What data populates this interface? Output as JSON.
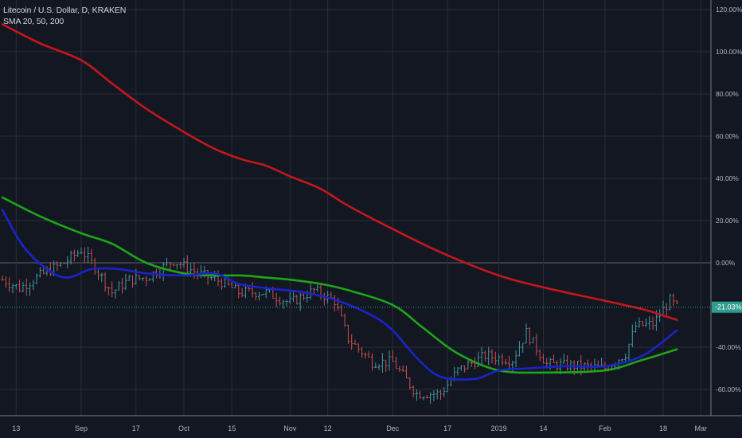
{
  "header": {
    "symbol_line": "Litecoin / U.S. Dollar, D, KRAKEN",
    "indicator_line": "SMA 20, 50, 200"
  },
  "colors": {
    "background": "#131722",
    "grid": "#2a2e39",
    "sma20": "#1b23c9",
    "sma50": "#1ea518",
    "sma200": "#c3171b",
    "candle_up": "#3f9aa4",
    "candle_down": "#c9504f",
    "current_price_tag": "#2e9d8f",
    "axis_text": "#b2b5be"
  },
  "chart_data": {
    "type": "line",
    "y_unit": "percent",
    "ylim": [
      -72,
      126
    ],
    "y_ticks": [
      {
        "value": 120,
        "label": "120.00%"
      },
      {
        "value": 100,
        "label": "100.00%"
      },
      {
        "value": 80,
        "label": "80.00%"
      },
      {
        "value": 60,
        "label": "60.00%"
      },
      {
        "value": 40,
        "label": "40.00%"
      },
      {
        "value": 20,
        "label": "20.00%"
      },
      {
        "value": 0,
        "label": "0.00%"
      },
      {
        "value": -40,
        "label": "-40.00%"
      },
      {
        "value": -60,
        "label": "-60.00%"
      }
    ],
    "x_ticks": [
      {
        "date": "2018-08-13",
        "label": "13"
      },
      {
        "date": "2018-09-01",
        "label": "Sep"
      },
      {
        "date": "2018-09-17",
        "label": "17"
      },
      {
        "date": "2018-10-01",
        "label": "Oct"
      },
      {
        "date": "2018-10-15",
        "label": "15"
      },
      {
        "date": "2018-11-01",
        "label": "Nov"
      },
      {
        "date": "2018-11-12",
        "label": "12"
      },
      {
        "date": "2018-12-01",
        "label": "Dec"
      },
      {
        "date": "2018-12-17",
        "label": "17"
      },
      {
        "date": "2019-01-01",
        "label": "2019"
      },
      {
        "date": "2019-01-14",
        "label": "14"
      },
      {
        "date": "2019-02-01",
        "label": "Feb"
      },
      {
        "date": "2019-02-18",
        "label": "18"
      },
      {
        "date": "2019-03-01",
        "label": "Mar"
      }
    ],
    "current_price": {
      "value": -21.03,
      "label": "-21.03%"
    },
    "series": [
      {
        "name": "SMA 200",
        "color_key": "sma200",
        "points": [
          [
            "2018-08-09",
            113
          ],
          [
            "2018-08-20",
            104
          ],
          [
            "2018-09-01",
            96
          ],
          [
            "2018-09-10",
            85
          ],
          [
            "2018-09-20",
            73
          ],
          [
            "2018-10-01",
            62
          ],
          [
            "2018-10-10",
            54
          ],
          [
            "2018-10-18",
            49
          ],
          [
            "2018-10-25",
            46
          ],
          [
            "2018-11-01",
            41
          ],
          [
            "2018-11-10",
            35
          ],
          [
            "2018-11-18",
            27
          ],
          [
            "2018-12-01",
            16
          ],
          [
            "2018-12-15",
            5
          ],
          [
            "2019-01-01",
            -6
          ],
          [
            "2019-01-15",
            -12
          ],
          [
            "2019-02-01",
            -18
          ],
          [
            "2019-02-12",
            -22
          ],
          [
            "2019-02-18",
            -25
          ],
          [
            "2019-02-22",
            -27
          ]
        ]
      },
      {
        "name": "SMA 50",
        "color_key": "sma50",
        "points": [
          [
            "2018-08-09",
            31
          ],
          [
            "2018-08-20",
            22
          ],
          [
            "2018-09-01",
            14
          ],
          [
            "2018-09-10",
            9
          ],
          [
            "2018-09-20",
            0
          ],
          [
            "2018-10-01",
            -5
          ],
          [
            "2018-10-10",
            -6
          ],
          [
            "2018-10-18",
            -6
          ],
          [
            "2018-10-25",
            -7
          ],
          [
            "2018-11-01",
            -8
          ],
          [
            "2018-11-10",
            -10
          ],
          [
            "2018-11-18",
            -13
          ],
          [
            "2018-12-01",
            -20
          ],
          [
            "2018-12-10",
            -31
          ],
          [
            "2018-12-20",
            -43
          ],
          [
            "2019-01-01",
            -51
          ],
          [
            "2019-01-15",
            -52
          ],
          [
            "2019-02-01",
            -51
          ],
          [
            "2019-02-12",
            -46
          ],
          [
            "2019-02-22",
            -41
          ]
        ]
      },
      {
        "name": "SMA 20",
        "color_key": "sma20",
        "points": [
          [
            "2018-08-09",
            25
          ],
          [
            "2018-08-15",
            8
          ],
          [
            "2018-08-22",
            -3
          ],
          [
            "2018-08-28",
            -7
          ],
          [
            "2018-09-04",
            -3
          ],
          [
            "2018-09-12",
            -3
          ],
          [
            "2018-09-20",
            -5
          ],
          [
            "2018-10-01",
            -6
          ],
          [
            "2018-10-10",
            -5
          ],
          [
            "2018-10-17",
            -10
          ],
          [
            "2018-10-25",
            -12
          ],
          [
            "2018-11-05",
            -14
          ],
          [
            "2018-11-15",
            -18
          ],
          [
            "2018-11-25",
            -25
          ],
          [
            "2018-12-01",
            -32
          ],
          [
            "2018-12-08",
            -45
          ],
          [
            "2018-12-15",
            -54
          ],
          [
            "2018-12-25",
            -55
          ],
          [
            "2019-01-01",
            -51
          ],
          [
            "2019-01-10",
            -50
          ],
          [
            "2019-01-20",
            -49
          ],
          [
            "2019-02-01",
            -49
          ],
          [
            "2019-02-12",
            -44
          ],
          [
            "2019-02-22",
            -32
          ]
        ]
      }
    ],
    "candle_path": [
      [
        "2018-08-09",
        -8
      ],
      [
        "2018-08-14",
        -12
      ],
      [
        "2018-08-20",
        -6
      ],
      [
        "2018-08-27",
        0
      ],
      [
        "2018-09-01",
        6
      ],
      [
        "2018-09-05",
        -2
      ],
      [
        "2018-09-10",
        -14
      ],
      [
        "2018-09-15",
        -8
      ],
      [
        "2018-09-20",
        -7
      ],
      [
        "2018-09-28",
        1
      ],
      [
        "2018-10-05",
        -5
      ],
      [
        "2018-10-12",
        -9
      ],
      [
        "2018-10-17",
        -14
      ],
      [
        "2018-10-25",
        -14
      ],
      [
        "2018-11-01",
        -19
      ],
      [
        "2018-11-08",
        -13
      ],
      [
        "2018-11-14",
        -18
      ],
      [
        "2018-11-18",
        -36
      ],
      [
        "2018-11-25",
        -47
      ],
      [
        "2018-12-01",
        -47
      ],
      [
        "2018-12-08",
        -62
      ],
      [
        "2018-12-15",
        -62
      ],
      [
        "2018-12-20",
        -51
      ],
      [
        "2018-12-28",
        -44
      ],
      [
        "2019-01-05",
        -46
      ],
      [
        "2019-01-09",
        -33
      ],
      [
        "2019-01-15",
        -48
      ],
      [
        "2019-01-25",
        -49
      ],
      [
        "2019-02-01",
        -50
      ],
      [
        "2019-02-07",
        -43
      ],
      [
        "2019-02-10",
        -30
      ],
      [
        "2019-02-15",
        -29
      ],
      [
        "2019-02-20",
        -18
      ],
      [
        "2019-02-22",
        -21
      ]
    ]
  }
}
